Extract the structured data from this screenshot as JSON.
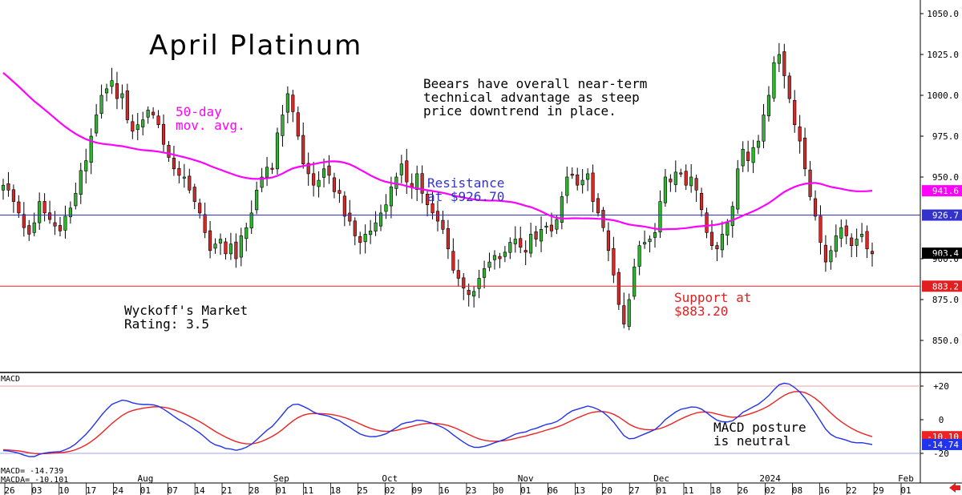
{
  "chart_data": {
    "type": "candlestick",
    "title": "April Platinum",
    "price_axis": {
      "ticks": [
        "1050.0",
        "1025.0",
        "1000.0",
        "975.0",
        "950.0",
        "900.0",
        "875.0",
        "850.0"
      ],
      "range": [
        835,
        1055
      ]
    },
    "macd_axis": {
      "ticks": [
        "+20",
        "0",
        "-20"
      ],
      "range": [
        -30,
        30
      ]
    },
    "x_day_labels": [
      "26",
      "03",
      "10",
      "17",
      "24",
      "01",
      "07",
      "14",
      "21",
      "28",
      "01",
      "11",
      "18",
      "25",
      "02",
      "09",
      "16",
      "23",
      "30",
      "01",
      "06",
      "13",
      "20",
      "27",
      "01",
      "11",
      "18",
      "26",
      "02",
      "08",
      "16",
      "22",
      "29",
      "01"
    ],
    "x_month_labels": [
      {
        "label": "Aug",
        "day_index": 5
      },
      {
        "label": "Sep",
        "day_index": 10
      },
      {
        "label": "Oct",
        "day_index": 14
      },
      {
        "label": "Nov",
        "day_index": 19
      },
      {
        "label": "Dec",
        "day_index": 24
      },
      {
        "label": "2024",
        "day_index": 28
      },
      {
        "label": "Feb",
        "day_index": 33
      }
    ],
    "candles_close": [
      945,
      942,
      935,
      928,
      919,
      915,
      922,
      935,
      928,
      924,
      920,
      917,
      926,
      931,
      940,
      954,
      960,
      975,
      988,
      1000,
      1004,
      1009,
      998,
      1001,
      985,
      978,
      982,
      985,
      991,
      988,
      982,
      970,
      962,
      955,
      951,
      950,
      942,
      935,
      928,
      916,
      905,
      909,
      912,
      903,
      909,
      900,
      914,
      919,
      928,
      942,
      950,
      956,
      955,
      977,
      988,
      1001,
      990,
      975,
      958,
      952,
      945,
      948,
      955,
      951,
      941,
      940,
      926,
      923,
      914,
      910,
      915,
      917,
      922,
      928,
      933,
      944,
      950,
      958,
      947,
      944,
      952,
      940,
      933,
      928,
      923,
      918,
      906,
      893,
      888,
      882,
      878,
      880,
      888,
      894,
      898,
      902,
      900,
      904,
      910,
      912,
      907,
      904,
      915,
      912,
      918,
      920,
      917,
      924,
      938,
      950,
      951,
      945,
      948,
      952,
      935,
      928,
      919,
      905,
      890,
      872,
      860,
      875,
      895,
      908,
      910,
      912,
      916,
      935,
      950,
      947,
      953,
      952,
      945,
      950,
      942,
      930,
      916,
      908,
      906,
      915,
      922,
      932,
      955,
      967,
      960,
      968,
      972,
      988,
      1000,
      1020,
      1025,
      1012,
      998,
      982,
      972,
      955,
      938,
      926,
      910,
      898,
      905,
      914,
      919,
      914,
      908,
      912,
      915,
      906,
      903
    ],
    "support_price": 883.2,
    "resistance_price": 926.7,
    "ma_last": 941.6,
    "last_price": 903.4,
    "macd_last": -14.74,
    "macda_last": -10.1,
    "labels": {
      "title": "April Platinum",
      "ma_label_1": "50-day",
      "ma_label_2": "mov. avg.",
      "comment_1": "Beears have overall near-term",
      "comment_2": "technical advantage as steep",
      "comment_3": "price downtrend in place.",
      "resistance_1": "Resistance",
      "resistance_2": "at $926.70",
      "support_1": "Support at",
      "support_2": "$883.20",
      "rating_1": "Wyckoff's Market",
      "rating_2": "Rating: 3.5",
      "macd_title": "MACD",
      "macd_note_1": "MACD posture",
      "macd_note_2": "is neutral",
      "macd_readout": "MACD=  -14.739",
      "macda_readout": "MACDA= -10.101",
      "tag_ma": "941.6",
      "tag_resistance": "926.7",
      "tag_last": "903.4",
      "tag_support": "883.2",
      "tag_macda": "-10.10",
      "tag_macd": "-14.74"
    },
    "colors": {
      "up": "#2fb52f",
      "down": "#d42a2a",
      "ma": "#ff00ff",
      "resistance": "#3333cc",
      "support": "#e02020",
      "macd": "#2233ee",
      "macda": "#ee2222"
    }
  }
}
